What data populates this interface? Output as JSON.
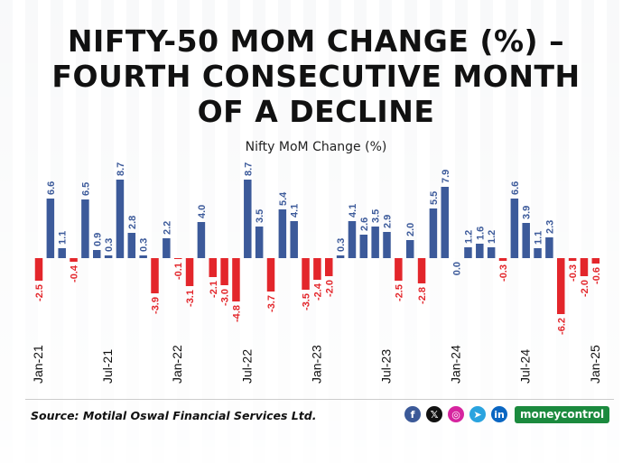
{
  "title_lines": [
    "NIFTY-50 MOM CHANGE (%) –",
    "FOURTH CONSECUTIVE MONTH",
    "OF A DECLINE"
  ],
  "source": "Source: Motilal Oswal Financial Services Ltd.",
  "brand": "moneycontrol",
  "social_icons": [
    {
      "name": "facebook-icon",
      "glyph": "f",
      "color": "#3b5998"
    },
    {
      "name": "x-icon",
      "glyph": "𝕏",
      "color": "#111111"
    },
    {
      "name": "instagram-icon",
      "glyph": "◎",
      "color": "#d6249f"
    },
    {
      "name": "telegram-icon",
      "glyph": "➤",
      "color": "#2aa3df"
    },
    {
      "name": "linkedin-icon",
      "glyph": "in",
      "color": "#0a66c2"
    }
  ],
  "chart_data": {
    "type": "bar",
    "title": "Nifty MoM Change (%)",
    "categories": [
      "Jan-21",
      "Feb-21",
      "Mar-21",
      "Apr-21",
      "May-21",
      "Jun-21",
      "Jul-21",
      "Aug-21",
      "Sep-21",
      "Oct-21",
      "Nov-21",
      "Dec-21",
      "Jan-22",
      "Feb-22",
      "Mar-22",
      "Apr-22",
      "May-22",
      "Jun-22",
      "Jul-22",
      "Aug-22",
      "Sep-22",
      "Oct-22",
      "Nov-22",
      "Dec-22",
      "Jan-23",
      "Feb-23",
      "Mar-23",
      "Apr-23",
      "May-23",
      "Jun-23",
      "Jul-23",
      "Aug-23",
      "Sep-23",
      "Oct-23",
      "Nov-23",
      "Dec-23",
      "Jan-24",
      "Feb-24",
      "Mar-24",
      "Apr-24",
      "May-24",
      "Jun-24",
      "Jul-24",
      "Aug-24",
      "Sep-24",
      "Oct-24",
      "Nov-24",
      "Dec-24",
      "Jan-25"
    ],
    "values": [
      -2.5,
      6.6,
      1.1,
      -0.4,
      6.5,
      0.9,
      0.3,
      8.7,
      2.8,
      0.3,
      -3.9,
      2.2,
      -0.1,
      -3.1,
      4.0,
      -2.1,
      -3.0,
      -4.8,
      8.7,
      3.5,
      -3.7,
      5.4,
      4.1,
      -3.5,
      -2.4,
      -2.0,
      0.3,
      4.1,
      2.6,
      3.5,
      2.9,
      -2.5,
      2.0,
      -2.8,
      5.5,
      7.9,
      0.0,
      1.2,
      1.6,
      1.2,
      -0.3,
      6.6,
      3.9,
      1.1,
      2.3,
      -6.2,
      -0.3,
      -2.0,
      -0.6
    ],
    "value_labels": [
      "-2.5",
      "6.6",
      "1.1",
      "-0.4",
      "6.5",
      "0.9",
      "0.3",
      "8.7",
      "2.8",
      "0.3",
      "-3.9",
      "2.2",
      "-0.1",
      "-3.1",
      "4.0",
      "-2.1",
      "-3.0",
      "-4.8",
      "8.7",
      "3.5",
      "-3.7",
      "5.4",
      "4.1",
      "-3.5",
      "-2.4",
      "-2.0",
      "0.3",
      "4.1",
      "2.6",
      "3.5",
      "2.9",
      "-2.5",
      "2.0",
      "-2.8",
      "5.5",
      "7.9",
      "0.0",
      "1.2",
      "1.6",
      "1.2",
      "-0.3",
      "6.6",
      "3.9",
      "1.1",
      "2.3",
      "-6.2",
      "-0.3",
      "-2.0",
      "-0.6"
    ],
    "x_tick_labels": [
      {
        "index": 0,
        "label": "Jan-21"
      },
      {
        "index": 6,
        "label": "Jul-21"
      },
      {
        "index": 12,
        "label": "Jan-22"
      },
      {
        "index": 18,
        "label": "Jul-22"
      },
      {
        "index": 24,
        "label": "Jan-23"
      },
      {
        "index": 30,
        "label": "Jul-23"
      },
      {
        "index": 36,
        "label": "Jan-24"
      },
      {
        "index": 42,
        "label": "Jul-24"
      },
      {
        "index": 48,
        "label": "Jan-25"
      }
    ],
    "colors": {
      "positive": "#3c5a9a",
      "negative": "#e3262b",
      "zero": "#9aa0a6"
    },
    "ylim": [
      -7,
      10
    ],
    "grid": false,
    "legend": "none"
  }
}
